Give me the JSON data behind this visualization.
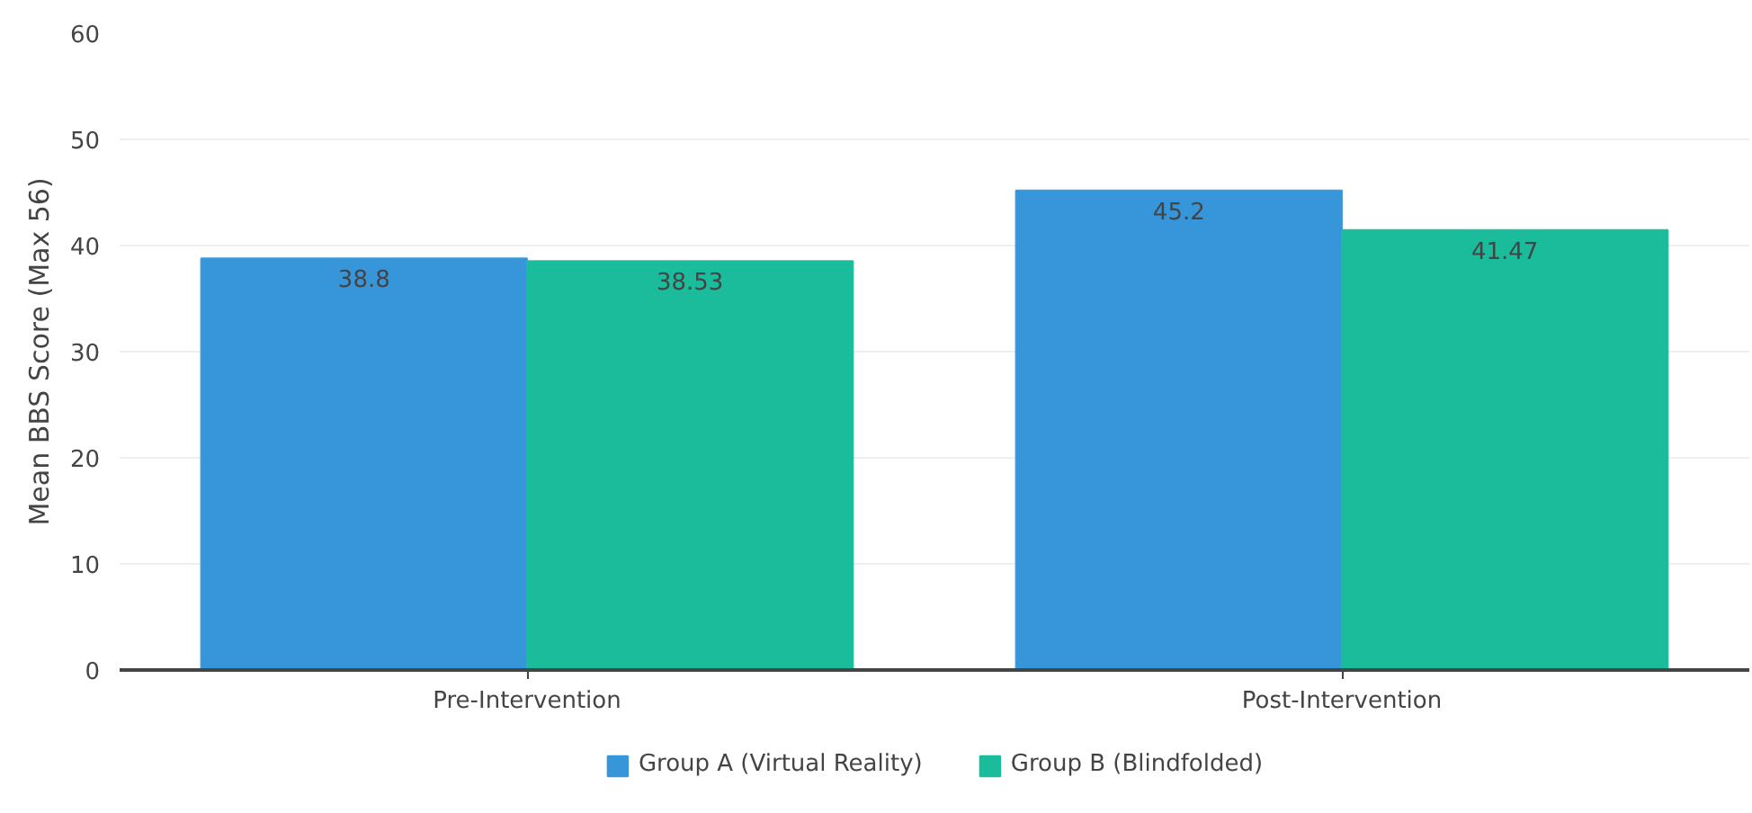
{
  "chart_data": {
    "type": "bar",
    "ylabel": "Mean BBS Score (Max 56)",
    "categories": [
      "Pre-Intervention",
      "Post-Intervention"
    ],
    "series": [
      {
        "name": "Group A (Virtual Reality)",
        "color": "#3696d9",
        "values": [
          38.8,
          45.2
        ]
      },
      {
        "name": "Group B (Blindfolded)",
        "color": "#1abc9c",
        "values": [
          38.53,
          41.47
        ]
      }
    ],
    "ylim": [
      0,
      60
    ],
    "yticks": [
      0,
      10,
      20,
      30,
      40,
      50,
      60
    ],
    "grid": "y",
    "legend": "bottom",
    "data_labels": true
  }
}
